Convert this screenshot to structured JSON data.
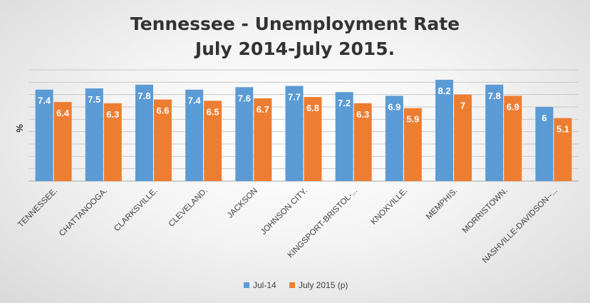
{
  "colors": {
    "series1": "#5b9bd5",
    "series2": "#ed7d31",
    "grid": "#c8c8c8",
    "axis": "#a6a6a6"
  },
  "chart_data": {
    "type": "bar",
    "title": "Tennessee - Unemployment Rate",
    "subtitle": "July 2014-July 2015.",
    "xlabel": "",
    "ylabel": "%",
    "ylim": [
      0,
      9
    ],
    "grid": true,
    "legend_position": "bottom",
    "categories": [
      "TENNESSEE.",
      "CHATTANOOGA.",
      "CLARKSVILLE.",
      "CLEVELAND.",
      "JACKSON",
      "JOHNSON CITY.",
      "KINGSPORT-BRISTOL-...",
      "KNOXVILLE.",
      "MEMPHIS.",
      "MORRISTOWN.",
      "NASHVILLE-DAVIDSON--..."
    ],
    "series": [
      {
        "name": "Jul-14",
        "values": [
          7.4,
          7.5,
          7.8,
          7.4,
          7.6,
          7.7,
          7.2,
          6.9,
          8.2,
          7.8,
          6
        ]
      },
      {
        "name": "July 2015 (p)",
        "values": [
          6.4,
          6.3,
          6.6,
          6.5,
          6.7,
          6.8,
          6.3,
          5.9,
          7,
          6.9,
          5.1
        ]
      }
    ]
  }
}
